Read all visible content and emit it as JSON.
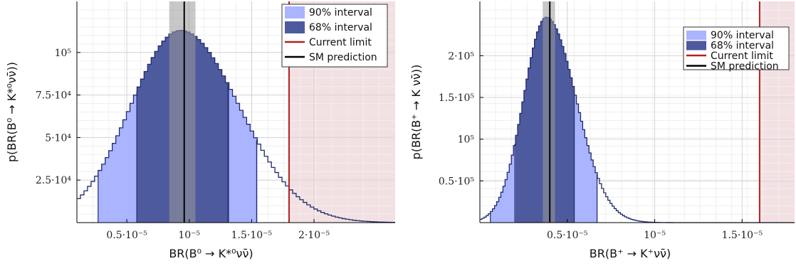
{
  "colors": {
    "interval90": "#aab4ff",
    "interval68": "#4e5a9e",
    "outline": "#1f2a6e",
    "current_limit": "#b22222",
    "limit_shade": "#f3e0e2",
    "sm_prediction": "#000000",
    "sm_band": "#9a9a9a"
  },
  "legend": {
    "interval90": "90% interval",
    "interval68": "68% interval",
    "current_limit": "Current limit",
    "sm_prediction": "SM prediction"
  },
  "chart_data": [
    {
      "type": "histogram",
      "xlabel": "BR(B⁰ → K*⁰νν̄)",
      "ylabel": "p(BR(B⁰ → K*⁰νν̄))",
      "xlim": [
        0.1,
        2.65
      ],
      "ylim": [
        0,
        130000
      ],
      "x_tick_labels": [
        "0.5·10⁻⁵",
        "10⁻⁵",
        "1.5·10⁻⁵",
        "2·10⁻⁵"
      ],
      "x_ticks": [
        0.5,
        1.0,
        1.5,
        2.0
      ],
      "y_tick_labels": [
        "2.5·10⁴",
        "5·10⁴",
        "7.5·10⁴",
        "10⁵"
      ],
      "y_ticks": [
        25000,
        50000,
        75000,
        100000
      ],
      "x_unit": "1e-5",
      "grid": true,
      "legend_position": "top-right",
      "distribution": {
        "peak_x": 0.93,
        "peak_y": 113000,
        "sigma_left": 0.4,
        "sigma_right": 0.47
      },
      "interval90": [
        0.27,
        1.54
      ],
      "interval68": [
        0.58,
        1.31
      ],
      "sm_prediction": 0.96,
      "sm_band": [
        0.84,
        1.05
      ],
      "current_limit": 1.8,
      "limit_shade_to": 2.65
    },
    {
      "type": "histogram",
      "xlabel": "BR(B⁺ → K⁺νν̄)",
      "ylabel": "p(BR(B⁺ → K νν̄))",
      "xlim": [
        0.0,
        1.8
      ],
      "ylim": [
        0,
        265000
      ],
      "x_tick_labels": [
        "0.5·10⁻⁵",
        "10⁻⁵",
        "1.5·10⁻⁵"
      ],
      "x_ticks": [
        0.5,
        1.0,
        1.5
      ],
      "y_tick_labels": [
        "0.5·10⁵",
        "10⁵",
        "1.5·10⁵",
        "2·10⁵"
      ],
      "y_ticks": [
        50000,
        100000,
        150000,
        200000
      ],
      "x_unit": "1e-5",
      "grid": true,
      "legend_position": "top-right",
      "distribution": {
        "peak_x": 0.38,
        "peak_y": 246000,
        "sigma_left": 0.13,
        "sigma_right": 0.17
      },
      "interval90": [
        0.06,
        0.67
      ],
      "interval68": [
        0.2,
        0.54
      ],
      "sm_prediction": 0.4,
      "sm_band": [
        0.36,
        0.43
      ],
      "current_limit": 1.6,
      "limit_shade_to": 1.8
    }
  ]
}
